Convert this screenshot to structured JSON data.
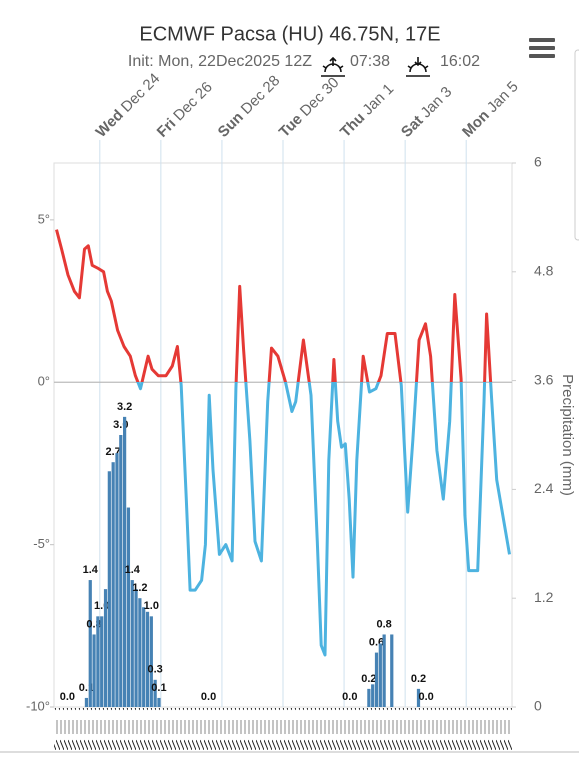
{
  "chart_data": {
    "type": "meteogram",
    "title": "ECMWF Pacsa (HU) 46.75N, 17E",
    "subtitle": "Init: Mon, 22Dec2025 12Z",
    "sunrise": "07:38",
    "sunset": "16:02",
    "y2_label": "Precipitation (mm)",
    "xlim": [
      0,
      360
    ],
    "xticks": [
      {
        "value": 36,
        "label": "Wed Dec 24"
      },
      {
        "value": 84,
        "label": "Fri Dec 26"
      },
      {
        "value": 132,
        "label": "Sun Dec 28"
      },
      {
        "value": 180,
        "label": "Tue Dec 30"
      },
      {
        "value": 228,
        "label": "Thu Jan 1"
      },
      {
        "value": 276,
        "label": "Sat Jan 3"
      },
      {
        "value": 324,
        "label": "Mon Jan 5"
      }
    ],
    "ylim": [
      -10,
      6.75
    ],
    "yticks": [
      {
        "value": -10,
        "label": "-10°"
      },
      {
        "value": -5,
        "label": "-5°"
      },
      {
        "value": 0,
        "label": "0°"
      },
      {
        "value": 5,
        "label": "5°"
      }
    ],
    "y2lim": [
      0,
      6
    ],
    "y2ticks": [
      0,
      1.2,
      2.4,
      3.6,
      4.8,
      6
    ],
    "temperature": {
      "color_above": "#e53935",
      "color_below": "#4db3e0",
      "x": [
        2,
        6,
        11,
        16,
        20,
        24,
        27,
        30,
        35,
        39,
        42,
        45,
        50,
        55,
        60,
        64,
        68,
        74,
        77,
        82,
        88,
        93,
        97,
        100,
        104,
        107,
        111,
        116,
        119,
        122,
        125,
        130,
        135,
        140,
        143,
        146,
        149,
        154,
        158,
        163,
        168,
        171,
        176,
        182,
        187,
        190,
        196,
        202,
        207,
        210,
        213,
        216,
        220,
        223,
        226,
        229,
        232,
        235,
        238,
        243,
        248,
        253,
        257,
        262,
        268,
        273,
        278,
        282,
        287,
        292,
        296,
        301,
        306,
        311,
        315,
        320,
        323,
        326,
        333,
        338,
        340,
        344,
        348,
        355,
        358
      ],
      "values": [
        4.7,
        4.1,
        3.3,
        2.8,
        2.6,
        4.1,
        4.2,
        3.6,
        3.5,
        3.4,
        2.8,
        2.5,
        1.6,
        1.1,
        0.8,
        0.2,
        -0.2,
        0.8,
        0.4,
        0.2,
        0.2,
        0.5,
        1.1,
        -0.1,
        -3.6,
        -6.4,
        -6.4,
        -6.1,
        -5.0,
        -0.4,
        -2.7,
        -5.3,
        -5.0,
        -5.5,
        -0.2,
        2.95,
        1.0,
        -1.8,
        -4.9,
        -5.5,
        -0.6,
        1.05,
        0.8,
        0,
        -0.9,
        -0.6,
        1.3,
        -0.4,
        -4.9,
        -8.1,
        -8.4,
        -2.4,
        0.7,
        -1.2,
        -2.0,
        -1.9,
        -3.6,
        -6.0,
        -2.4,
        0.8,
        -0.3,
        -0.2,
        0.2,
        1.5,
        1.5,
        -0.1,
        -4.0,
        -1.8,
        1.3,
        1.8,
        0.8,
        -2.1,
        -3.6,
        -1.2,
        2.7,
        0.1,
        -4.1,
        -5.8,
        -5.8,
        -0.6,
        2.1,
        -0.5,
        -3.0,
        -4.6,
        -5.3
      ]
    },
    "precipitation": {
      "axis": "y2",
      "color": "#4682b4",
      "bar_hours": 3,
      "x": [
        9,
        24,
        27,
        30,
        33,
        36,
        39,
        42,
        45,
        48,
        51,
        54,
        57,
        60,
        63,
        66,
        69,
        72,
        75,
        78,
        81,
        120,
        231,
        246,
        249,
        252,
        255,
        258,
        264,
        285,
        291
      ],
      "values": [
        0,
        0.1,
        1.4,
        0.8,
        1.0,
        1.0,
        1.3,
        2.6,
        2.7,
        2.8,
        3.0,
        3.2,
        2.2,
        1.4,
        1.3,
        1.2,
        1.1,
        1.05,
        1.0,
        0.3,
        0.1,
        0,
        0,
        0.2,
        0.25,
        0.6,
        0.7,
        0.8,
        0.8,
        0.2,
        0
      ],
      "value_labels": [
        "0.0",
        "0.1",
        "1.4",
        "0.8",
        null,
        "1.0",
        null,
        null,
        "2.7",
        null,
        "3.0",
        "3.2",
        null,
        "1.4",
        null,
        "1.2",
        null,
        null,
        "1.0",
        "0.3",
        "0.1",
        "0.0",
        "0.0",
        "0.2",
        null,
        "0.6",
        null,
        "0.8",
        null,
        "0.2",
        "0.0"
      ]
    }
  }
}
